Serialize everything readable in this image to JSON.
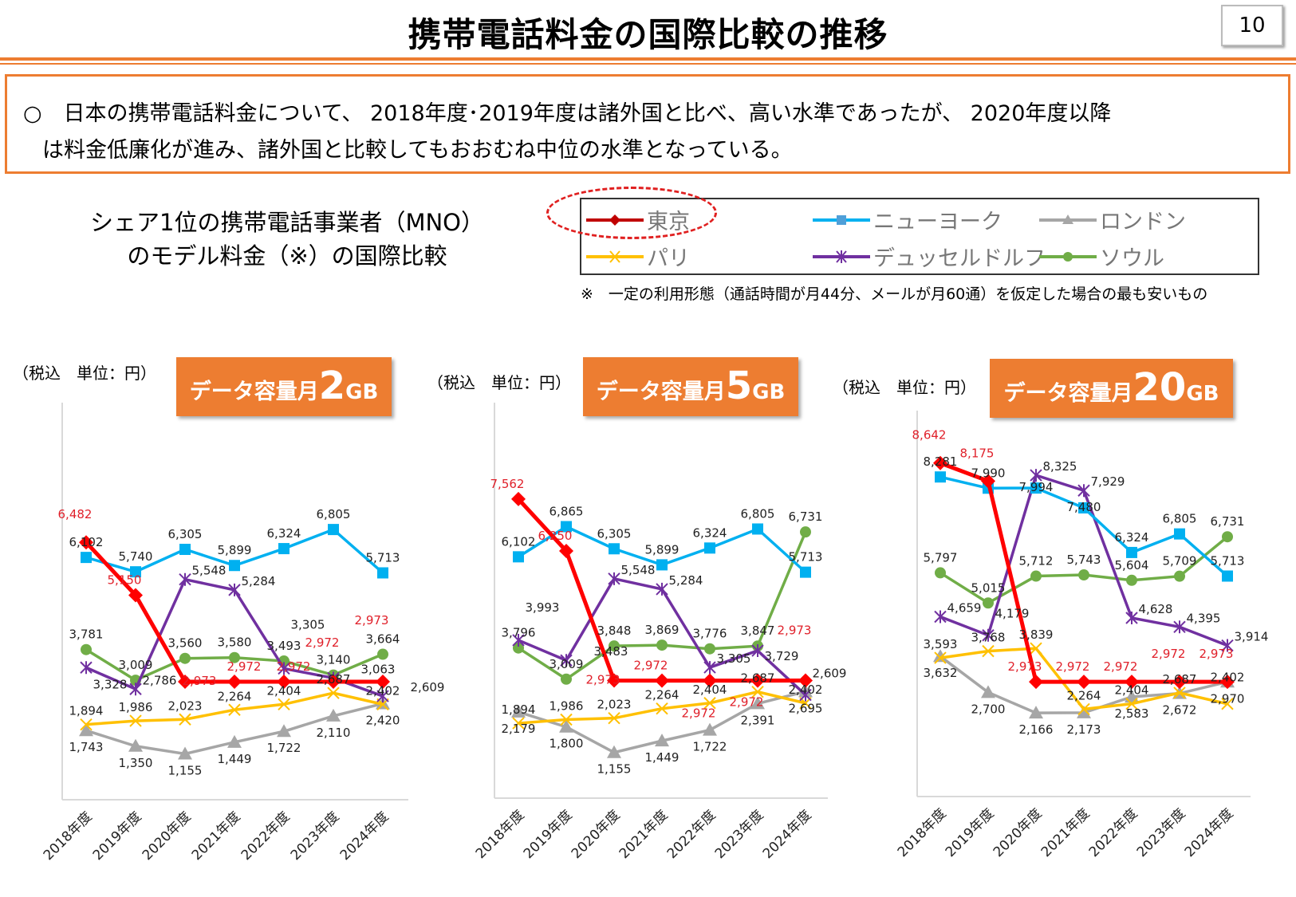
{
  "header": {
    "title": "携帯電話料金の国際比較の推移",
    "page_number": "10"
  },
  "summary": {
    "line1": "○　日本の携帯電話料金について、 2018年度･2019年度は諸外国と比べ、高い水準であったが、 2020年度以降",
    "line2": "は料金低廉化が進み、諸外国と比較してもおおむね中位の水準となっている。"
  },
  "subtitle": {
    "line1": "シェア1位の携帯電話事業者（MNO）",
    "line2": "のモデル料金（※）の国際比較"
  },
  "legend": [
    {
      "name": "東京",
      "color": "#ff0000",
      "marker": "diamond"
    },
    {
      "name": "ニューヨーク",
      "color": "#00b0f0",
      "marker": "square"
    },
    {
      "name": "ロンドン",
      "color": "#a6a6a6",
      "marker": "triangle"
    },
    {
      "name": "パリ",
      "color": "#ffc000",
      "marker": "x"
    },
    {
      "name": "デュッセルドルフ",
      "color": "#7030a0",
      "marker": "star"
    },
    {
      "name": "ソウル",
      "color": "#70ad47",
      "marker": "circle"
    }
  ],
  "note": "※　一定の利用形態（通話時間が月44分、メールが月60通）を仮定した場合の最も安いもの",
  "chart_data": [
    {
      "type": "line",
      "unit_label": "（税込　単位：円）",
      "badge": {
        "prefix": "データ容量月",
        "number": "2",
        "suffix": "GB"
      },
      "categories": [
        "2018年度",
        "2019年度",
        "2020年度",
        "2021年度",
        "2022年度",
        "2023年度",
        "2024年度"
      ],
      "ylim": [
        0,
        10000
      ],
      "grid": false,
      "series": [
        {
          "name": "東京",
          "values": [
            6482,
            5150,
            2973,
            2972,
            2972,
            2972,
            2973
          ]
        },
        {
          "name": "ニューヨーク",
          "values": [
            6102,
            5740,
            6305,
            5899,
            6324,
            6805,
            5713
          ]
        },
        {
          "name": "ロンドン",
          "values": [
            1743,
            1350,
            1155,
            1449,
            1722,
            2110,
            2420
          ]
        },
        {
          "name": "パリ",
          "values": [
            1894,
            1986,
            2023,
            2264,
            2404,
            2687,
            2402
          ]
        },
        {
          "name": "デュッセルドルフ",
          "values": [
            3328,
            2786,
            5548,
            5284,
            3305,
            3063,
            2609
          ]
        },
        {
          "name": "ソウル",
          "values": [
            3781,
            3009,
            3560,
            3580,
            3493,
            3140,
            3664
          ]
        }
      ]
    },
    {
      "type": "line",
      "unit_label": "（税込　単位：円）",
      "badge": {
        "prefix": "データ容量月",
        "number": "5",
        "suffix": "GB"
      },
      "categories": [
        "2018年度",
        "2019年度",
        "2020年度",
        "2021年度",
        "2022年度",
        "2023年度",
        "2024年度"
      ],
      "ylim": [
        0,
        10000
      ],
      "grid": false,
      "series": [
        {
          "name": "東京",
          "values": [
            7562,
            6250,
            2973,
            2972,
            2972,
            2972,
            2973
          ]
        },
        {
          "name": "ニューヨーク",
          "values": [
            6102,
            6865,
            6305,
            5899,
            6324,
            6805,
            5713
          ]
        },
        {
          "name": "ロンドン",
          "values": [
            2179,
            1800,
            1155,
            1449,
            1722,
            2391,
            2695
          ]
        },
        {
          "name": "パリ",
          "values": [
            1894,
            1986,
            2023,
            2264,
            2404,
            2687,
            2402
          ]
        },
        {
          "name": "デュッセルドルフ",
          "values": [
            3993,
            3483,
            5548,
            5284,
            3305,
            3729,
            2609
          ]
        },
        {
          "name": "ソウル",
          "values": [
            3796,
            3009,
            3848,
            3869,
            3776,
            3847,
            6731
          ]
        }
      ]
    },
    {
      "type": "line",
      "unit_label": "（税込　単位：円）",
      "badge": {
        "prefix": "データ容量月",
        "number": "20",
        "suffix": "GB"
      },
      "categories": [
        "2018年度",
        "2019年度",
        "2020年度",
        "2021年度",
        "2022年度",
        "2023年度",
        "2024年度"
      ],
      "ylim": [
        0,
        10000
      ],
      "grid": false,
      "series": [
        {
          "name": "東京",
          "values": [
            8642,
            8175,
            2973,
            2972,
            2972,
            2972,
            2973
          ]
        },
        {
          "name": "ニューヨーク",
          "values": [
            8281,
            7990,
            7994,
            7480,
            6324,
            6805,
            5713
          ]
        },
        {
          "name": "ロンドン",
          "values": [
            3632,
            2700,
            2166,
            2173,
            2583,
            2672,
            2970
          ]
        },
        {
          "name": "パリ",
          "values": [
            3593,
            3768,
            3839,
            2264,
            2404,
            2687,
            2402
          ]
        },
        {
          "name": "デュッセルドルフ",
          "values": [
            4659,
            4179,
            8325,
            7929,
            4628,
            4395,
            3914
          ]
        },
        {
          "name": "ソウル",
          "values": [
            5797,
            5015,
            5712,
            5743,
            5604,
            5709,
            6731
          ]
        }
      ]
    }
  ]
}
